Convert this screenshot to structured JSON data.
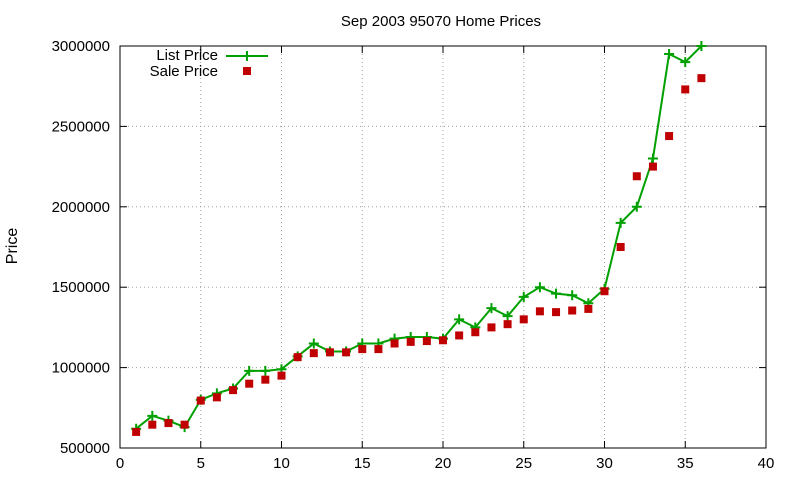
{
  "chart_data": {
    "type": "line",
    "title": "Sep 2003 95070 Home Prices",
    "xlabel": "",
    "ylabel": "Price",
    "xlim": [
      0,
      40
    ],
    "ylim": [
      500000,
      3000000
    ],
    "xticks": [
      0,
      5,
      10,
      15,
      20,
      25,
      30,
      35,
      40
    ],
    "yticks": [
      500000,
      1000000,
      1500000,
      2000000,
      2500000,
      3000000
    ],
    "grid": true,
    "legend": "top-left",
    "x": [
      1,
      2,
      3,
      4,
      5,
      6,
      7,
      8,
      9,
      10,
      11,
      12,
      13,
      14,
      15,
      16,
      17,
      18,
      19,
      20,
      21,
      22,
      23,
      24,
      25,
      26,
      27,
      28,
      29,
      30,
      31,
      32,
      33,
      34,
      35,
      36
    ],
    "series": [
      {
        "name": "List Price",
        "style": "line-plus",
        "color": "#00a000",
        "values": [
          620000,
          700000,
          670000,
          630000,
          800000,
          840000,
          870000,
          980000,
          980000,
          990000,
          1070000,
          1150000,
          1100000,
          1100000,
          1150000,
          1150000,
          1180000,
          1190000,
          1190000,
          1180000,
          1300000,
          1250000,
          1370000,
          1320000,
          1440000,
          1500000,
          1460000,
          1450000,
          1400000,
          1490000,
          1900000,
          2000000,
          2300000,
          2950000,
          2900000,
          3000000
        ]
      },
      {
        "name": "Sale Price",
        "style": "square-points",
        "color": "#c00000",
        "values": [
          600000,
          645000,
          655000,
          645000,
          795000,
          815000,
          860000,
          900000,
          925000,
          950000,
          1065000,
          1090000,
          1095000,
          1095000,
          1115000,
          1115000,
          1150000,
          1160000,
          1165000,
          1170000,
          1200000,
          1220000,
          1250000,
          1270000,
          1300000,
          1350000,
          1345000,
          1355000,
          1365000,
          1475000,
          1750000,
          2190000,
          2250000,
          2440000,
          2730000,
          2800000
        ]
      }
    ]
  }
}
